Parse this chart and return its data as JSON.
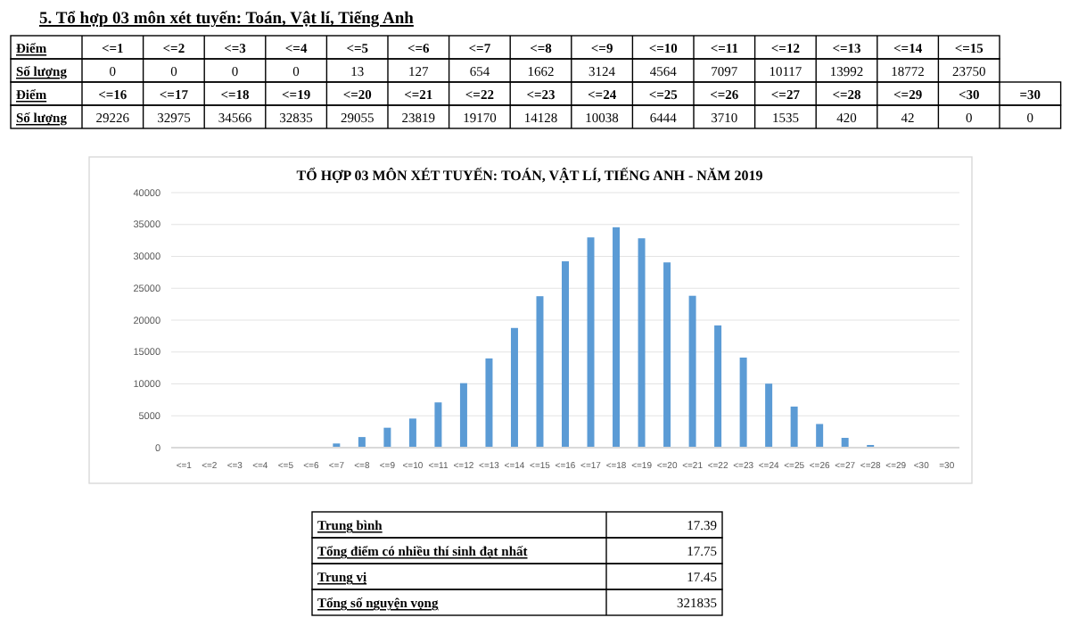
{
  "chart_data": [
    {
      "type": "other",
      "title": "5. Tổ hợp 03 môn xét tuyến: Toán, Vật lí, Tiếng Anh",
      "xlabel": "Điểm",
      "ylabel": "Số lượng",
      "categories": [
        "<=1",
        "<=2",
        "<=3",
        "<=4",
        "<=5",
        "<=6",
        "<=7",
        "<=8",
        "<=9",
        "<=10",
        "<=11",
        "<=12",
        "<=13",
        "<=14",
        "<=15",
        "<=16",
        "<=17",
        "<=18",
        "<=19",
        "<=20",
        "<=21",
        "<=22",
        "<=23",
        "<=24",
        "<=25",
        "<=26",
        "<=27",
        "<=28",
        "<=29",
        "<30",
        "=30"
      ],
      "annotations": [
        "0",
        "0",
        "0",
        "0",
        "13",
        "127",
        "654",
        "1662",
        "3124",
        "4564",
        "7097",
        "10117",
        "13992",
        "18772",
        "23750",
        "29226",
        "32975",
        "34566",
        "32835",
        "29055",
        "23819",
        "19170",
        "14128",
        "10038",
        "6444",
        "3710",
        "1535",
        "420",
        "42",
        "0",
        "0"
      ]
    },
    {
      "type": "bar",
      "title": "TỔ HỢP 03 MÔN XÉT TUYẾN: TOÁN, VẬT LÍ, TIẾNG ANH - NĂM 2019",
      "categories": [
        "<=1",
        "<=2",
        "<=3",
        "<=4",
        "<=5",
        "<=6",
        "<=7",
        "<=8",
        "<=9",
        "<=10",
        "<=11",
        "<=12",
        "<=13",
        "<=14",
        "<=15",
        "<=16",
        "<=17",
        "<=18",
        "<=19",
        "<=20",
        "<=21",
        "<=22",
        "<=23",
        "<=24",
        "<=25",
        "<=26",
        "<=27",
        "<=28",
        "<=29",
        "<30",
        "=30"
      ],
      "values": [
        0,
        0,
        0,
        0,
        13,
        127,
        654,
        1662,
        3124,
        4564,
        7097,
        10117,
        13992,
        18772,
        23750,
        29226,
        32975,
        34566,
        32835,
        29055,
        23819,
        19170,
        14128,
        10038,
        6444,
        3710,
        1535,
        420,
        42,
        0,
        0
      ],
      "color": "#5b9bd5",
      "ylim": [
        0,
        40000
      ],
      "yticks": [
        0,
        5000,
        10000,
        15000,
        20000,
        25000,
        30000,
        35000,
        40000
      ],
      "grid": "y"
    },
    {
      "type": "other",
      "annotations": [
        "Trung bình",
        "17.39",
        "Tổng điểm có nhiều thí sinh đạt nhất",
        "17.75",
        "Trung vị",
        "17.45",
        "Tổng số nguyện vọng",
        "321835"
      ]
    }
  ]
}
